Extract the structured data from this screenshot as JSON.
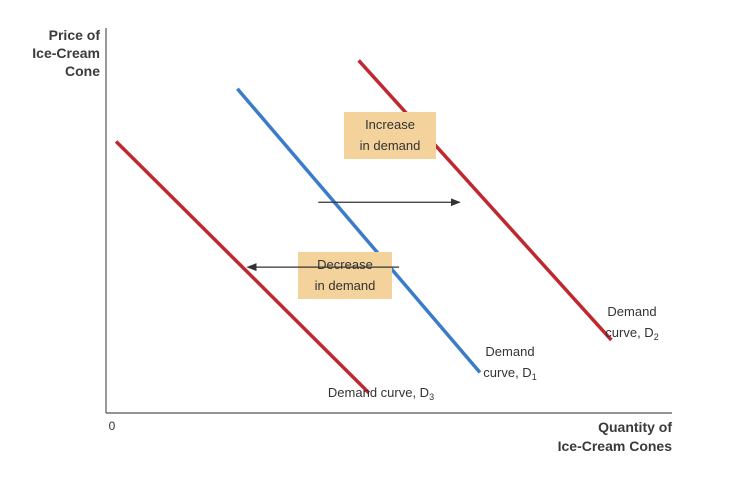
{
  "chart_data": {
    "type": "line",
    "title": "",
    "xlabel": [
      "Quantity of",
      "Ice-Cream Cones"
    ],
    "ylabel": [
      "Price of",
      "Ice-Cream",
      "Cone"
    ],
    "origin_label": "0",
    "series": [
      {
        "id": "d1",
        "color": "#3a7cc9",
        "label_lines": [
          "Demand",
          "curve, D",
          "1"
        ],
        "points": [
          [
            1.3,
            8.0
          ],
          [
            3.7,
            1.0
          ]
        ]
      },
      {
        "id": "d2",
        "color": "#c0282f",
        "label_lines": [
          "Demand",
          "curve, D",
          "2"
        ],
        "points": [
          [
            2.5,
            8.7
          ],
          [
            5.0,
            1.8
          ]
        ]
      },
      {
        "id": "d3",
        "color": "#c0282f",
        "label_lines": [
          "Demand curve, D",
          "3"
        ],
        "points": [
          [
            0.1,
            6.7
          ],
          [
            2.6,
            0.5
          ]
        ]
      }
    ],
    "annotations": [
      {
        "id": "increase",
        "text_lines": [
          "Increase",
          "in demand"
        ],
        "box_color": "#f3d29c",
        "arrow_from": [
          2.1,
          5.2
        ],
        "arrow_to": [
          3.5,
          5.2
        ]
      },
      {
        "id": "decrease",
        "text_lines": [
          "Decrease",
          "in demand"
        ],
        "box_color": "#f3d29c",
        "arrow_from": [
          2.9,
          3.6
        ],
        "arrow_to": [
          1.4,
          3.6
        ]
      }
    ],
    "xlim": [
      0,
      5.6
    ],
    "ylim": [
      0,
      9.5
    ],
    "grid": false,
    "legend": "none"
  }
}
